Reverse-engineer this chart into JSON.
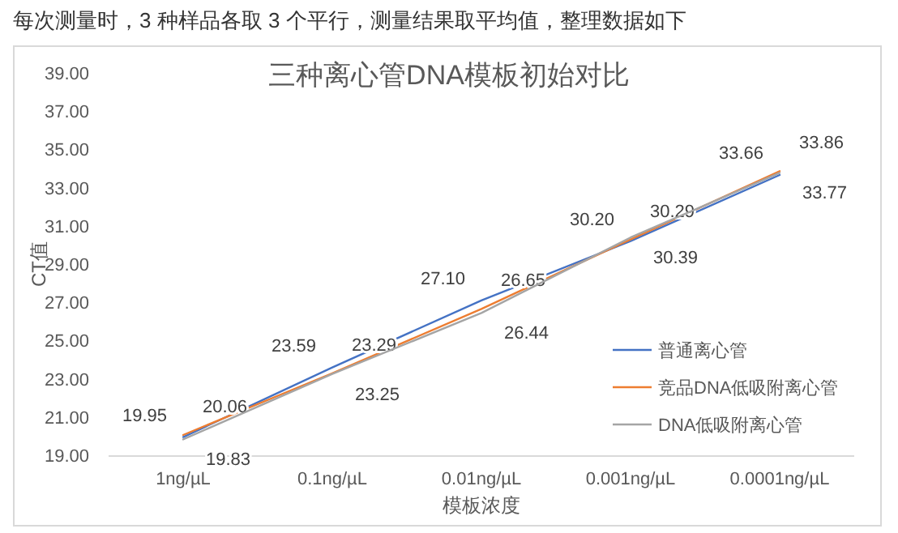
{
  "chart_data": {
    "type": "line",
    "title": "三种离心管DNA模板初始对比",
    "xlabel": "模板浓度",
    "ylabel": "CT值",
    "annotations": [
      "每次测量时，3 种样品各取 3 个平行，测量结果取平均值，整理数据如下"
    ],
    "categories": [
      "1ng/µL",
      "0.1ng/µL",
      "0.01ng/µL",
      "0.001ng/µL",
      "0.0001ng/µL"
    ],
    "series": [
      {
        "name": "普通离心管",
        "color": "#4472c4",
        "values": [
          19.95,
          23.59,
          27.1,
          30.2,
          33.66
        ],
        "value_labels": [
          "19.95",
          "23.59",
          "27.10",
          "30.20",
          "33.66"
        ]
      },
      {
        "name": "竞品DNA低吸附离心管",
        "color": "#ed7d31",
        "values": [
          20.06,
          23.29,
          26.65,
          30.29,
          33.86
        ],
        "value_labels": [
          "20.06",
          "23.29",
          "26.65",
          "30.29",
          "33.86"
        ]
      },
      {
        "name": "DNA低吸附离心管",
        "color": "#a5a5a5",
        "values": [
          19.83,
          23.25,
          26.44,
          30.39,
          33.77
        ],
        "value_labels": [
          "19.83",
          "23.25",
          "26.44",
          "30.39",
          "33.77"
        ]
      }
    ],
    "ylim": [
      19,
      39
    ],
    "yticks": [
      {
        "value": 19,
        "label": "19.00"
      },
      {
        "value": 21,
        "label": "21.00"
      },
      {
        "value": 23,
        "label": "23.00"
      },
      {
        "value": 25,
        "label": "25.00"
      },
      {
        "value": 27,
        "label": "27.00"
      },
      {
        "value": 29,
        "label": "29.00"
      },
      {
        "value": 31,
        "label": "31.00"
      },
      {
        "value": 33,
        "label": "33.00"
      },
      {
        "value": 35,
        "label": "35.00"
      },
      {
        "value": 37,
        "label": "37.00"
      },
      {
        "value": 39,
        "label": "39.00"
      }
    ],
    "legend": "bottom right",
    "grid": false,
    "marker": "none",
    "line_style": "solid"
  }
}
